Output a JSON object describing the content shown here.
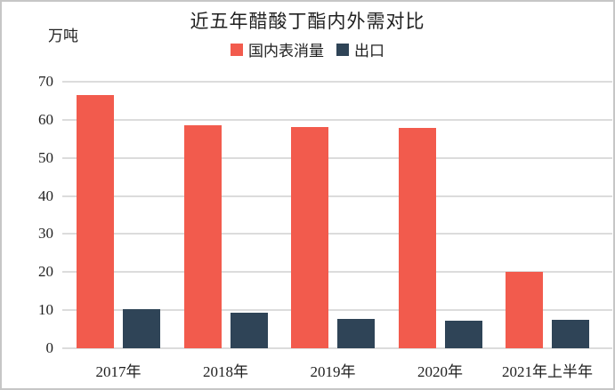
{
  "chart_data": {
    "type": "bar",
    "title": "近五年醋酸丁酯内外需对比",
    "unit_label": "万吨",
    "categories": [
      "2017年",
      "2018年",
      "2019年",
      "2020年",
      "2021年上半年"
    ],
    "series": [
      {
        "name": "国内表消量",
        "color": "#F25B4D",
        "values": [
          66.5,
          58.6,
          58.0,
          57.8,
          20.0
        ]
      },
      {
        "name": "出口",
        "color": "#2F4457",
        "values": [
          10.2,
          9.4,
          7.7,
          7.3,
          7.5
        ]
      }
    ],
    "ylim": [
      0,
      70
    ],
    "yticks": [
      0,
      10,
      20,
      30,
      40,
      50,
      60,
      70
    ],
    "grid": true,
    "legend_position": "top",
    "xlabel": "",
    "ylabel": "万吨"
  },
  "colors": {
    "gridline": "#DCDCDC",
    "frame_border": "#C6C6C6",
    "text": "#1F1F1F",
    "background": "#FFFFFF"
  }
}
